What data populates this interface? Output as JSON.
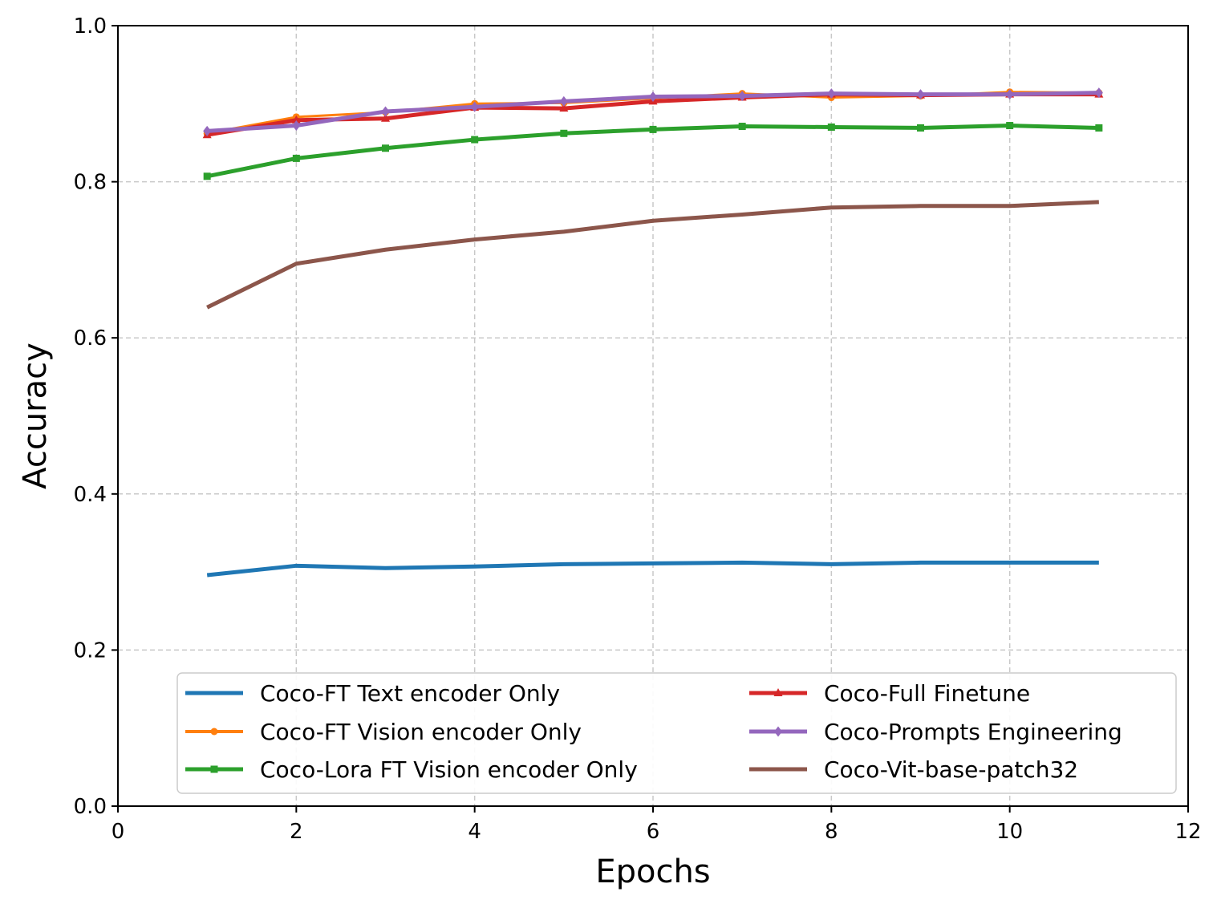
{
  "chart_data": {
    "type": "line",
    "title": "",
    "xlabel": "Epochs",
    "ylabel": "Accuracy",
    "xlim": [
      0,
      12
    ],
    "ylim": [
      0.0,
      1.0
    ],
    "xticks": [
      "0",
      "2",
      "4",
      "6",
      "8",
      "10",
      "12"
    ],
    "yticks": [
      "0.0",
      "0.2",
      "0.4",
      "0.6",
      "0.8",
      "1.0"
    ],
    "grid": true,
    "legend_position": "lower-center",
    "x": [
      1,
      2,
      3,
      4,
      5,
      6,
      7,
      8,
      9,
      10,
      11
    ],
    "series": [
      {
        "name": "Coco-FT Text encoder Only",
        "color": "#1f77b4",
        "marker": "none",
        "values": [
          0.296,
          0.308,
          0.305,
          0.307,
          0.31,
          0.311,
          0.312,
          0.31,
          0.312,
          0.312,
          0.312
        ]
      },
      {
        "name": "Coco-FT Vision encoder Only",
        "color": "#ff7f0e",
        "marker": "circle",
        "values": [
          0.862,
          0.883,
          0.889,
          0.9,
          0.901,
          0.907,
          0.913,
          0.908,
          0.91,
          0.915,
          0.914
        ]
      },
      {
        "name": "Coco-Lora FT Vision encoder Only",
        "color": "#2ca02c",
        "marker": "square",
        "values": [
          0.807,
          0.83,
          0.843,
          0.854,
          0.862,
          0.867,
          0.871,
          0.87,
          0.869,
          0.872,
          0.869
        ]
      },
      {
        "name": "Coco-Full Finetune",
        "color": "#d62728",
        "marker": "triangle",
        "values": [
          0.86,
          0.879,
          0.881,
          0.895,
          0.894,
          0.903,
          0.908,
          0.912,
          0.911,
          0.912,
          0.912
        ]
      },
      {
        "name": "Coco-Prompts Engineering",
        "color": "#9467bd",
        "marker": "diamond",
        "values": [
          0.865,
          0.872,
          0.89,
          0.896,
          0.903,
          0.909,
          0.91,
          0.913,
          0.912,
          0.912,
          0.914
        ]
      },
      {
        "name": "Coco-Vit-base-patch32",
        "color": "#8c564b",
        "marker": "none",
        "values": [
          0.639,
          0.695,
          0.713,
          0.726,
          0.736,
          0.75,
          0.758,
          0.767,
          0.769,
          0.769,
          0.774
        ]
      }
    ]
  }
}
